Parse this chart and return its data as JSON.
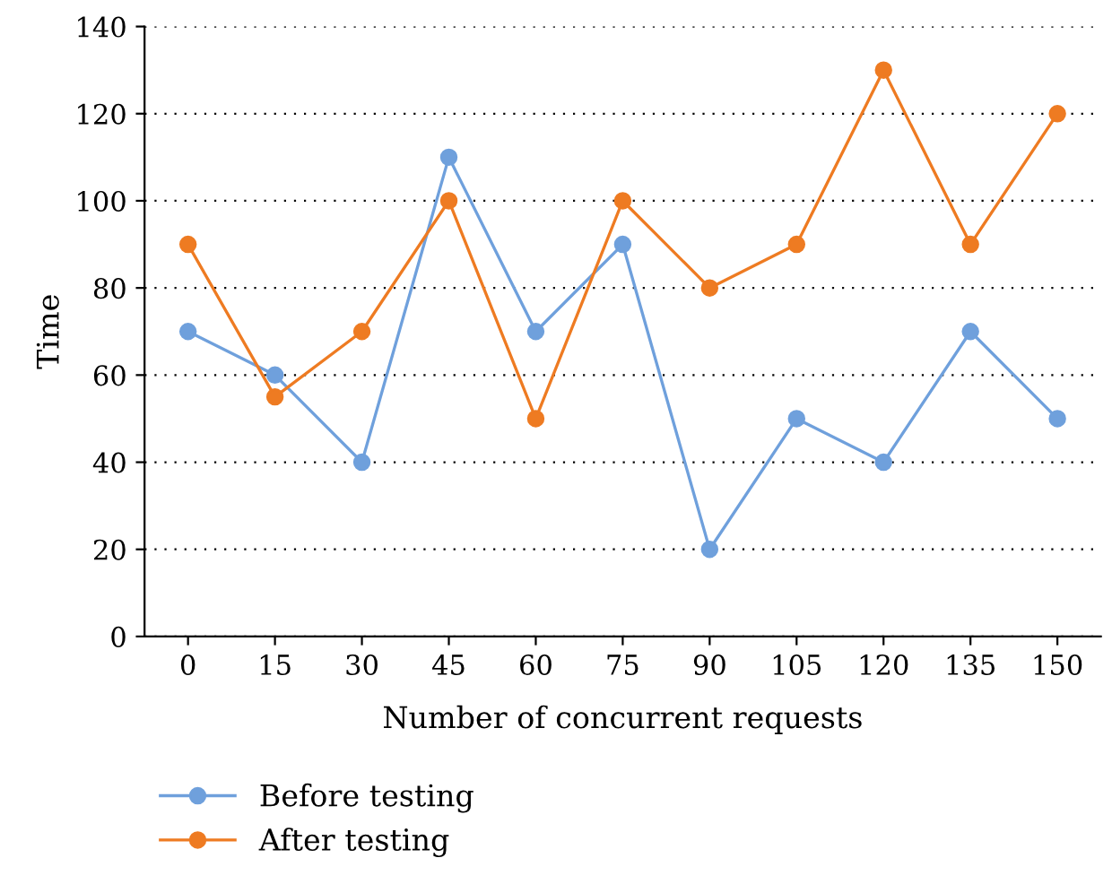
{
  "chart_data": {
    "type": "line",
    "xlabel": "Number of concurrent requests",
    "ylabel": "Time",
    "categories": [
      "0",
      "15",
      "30",
      "45",
      "60",
      "75",
      "90",
      "105",
      "120",
      "135",
      "150"
    ],
    "series": [
      {
        "name": "Before testing",
        "color": "#6fa0dc",
        "values": [
          70,
          60,
          40,
          110,
          70,
          90,
          20,
          50,
          40,
          70,
          50
        ]
      },
      {
        "name": "After testing",
        "color": "#ee7b22",
        "values": [
          90,
          55,
          70,
          100,
          50,
          100,
          80,
          90,
          130,
          90,
          120
        ]
      }
    ],
    "ylim": [
      0,
      140
    ],
    "yticks": [
      0,
      20,
      40,
      60,
      80,
      100,
      120,
      140
    ],
    "grid": "y",
    "legend": "bottom left",
    "marker": "circle",
    "line_style": "solid"
  }
}
